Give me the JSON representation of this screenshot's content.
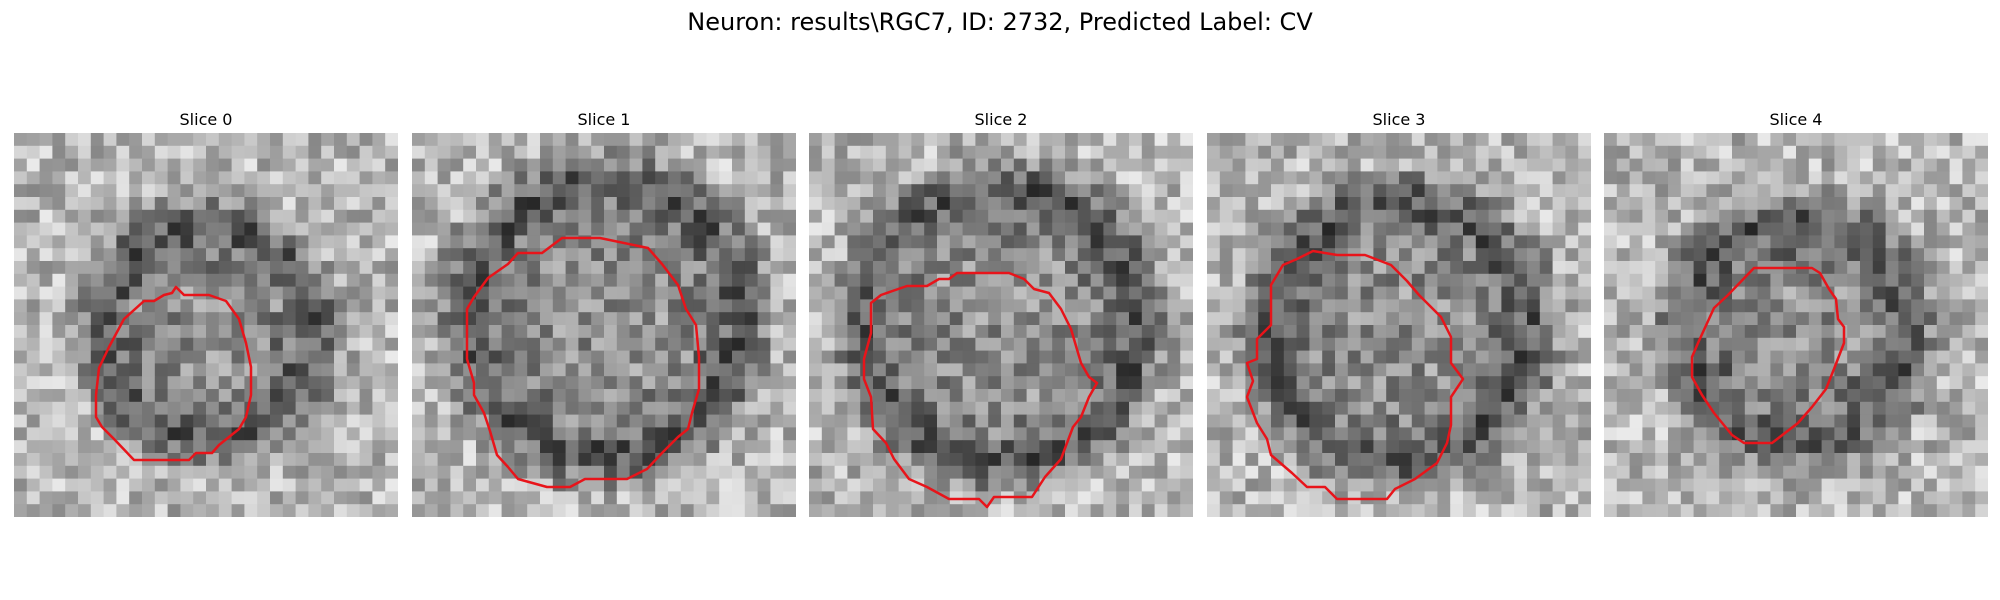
{
  "figure": {
    "title": "Neuron: results\\RGC7, ID: 2732, Predicted Label: CV",
    "contour_color": "#e8141a",
    "colormap": "gray",
    "panels": [
      {
        "title": "Slice 0"
      },
      {
        "title": "Slice 1"
      },
      {
        "title": "Slice 2"
      },
      {
        "title": "Slice 3"
      },
      {
        "title": "Slice 4"
      }
    ]
  }
}
